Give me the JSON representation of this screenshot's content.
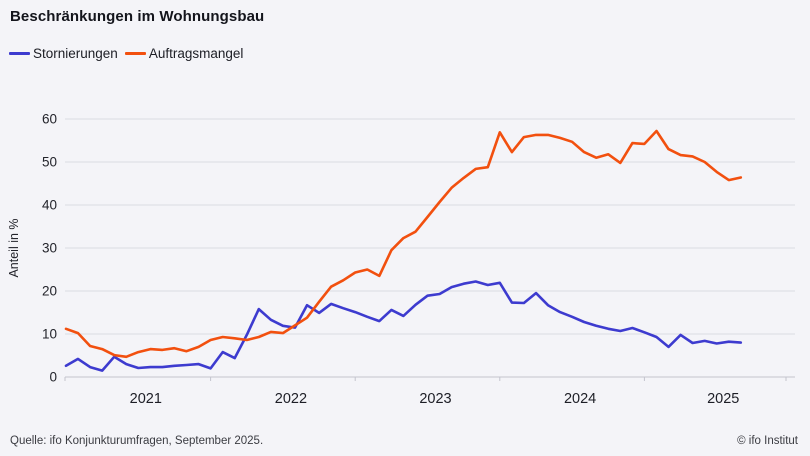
{
  "page": {
    "title": "Beschränkungen im Wohnungsbau"
  },
  "legend": [
    {
      "label": "Stornierungen",
      "color": "#3d3bcf"
    },
    {
      "label": "Auftragsmangel",
      "color": "#f2500f"
    }
  ],
  "footer": {
    "source": "Quelle: ifo Konjunkturumfragen, September 2025.",
    "copyright": "© ifo Institut"
  },
  "colors": {
    "background": "#f4f4f8",
    "gridline": "#dadbe2",
    "axis": "#c3c4cd",
    "axis_text": "#23242b",
    "year_text": "#1d1e26"
  },
  "chart_data": {
    "type": "line",
    "title": "Beschränkungen im Wohnungsbau",
    "ylabel": "Anteil in %",
    "ylim": [
      0,
      60
    ],
    "yticks": [
      0,
      10,
      20,
      30,
      40,
      50,
      60
    ],
    "grid": "horizontal",
    "legend_position": "top-left",
    "x_year_labels": [
      "2021",
      "2022",
      "2023",
      "2024",
      "2025"
    ],
    "x": [
      "2021-01",
      "2021-02",
      "2021-03",
      "2021-04",
      "2021-05",
      "2021-06",
      "2021-07",
      "2021-08",
      "2021-09",
      "2021-10",
      "2021-11",
      "2021-12",
      "2022-01",
      "2022-02",
      "2022-03",
      "2022-04",
      "2022-05",
      "2022-06",
      "2022-07",
      "2022-08",
      "2022-09",
      "2022-10",
      "2022-11",
      "2022-12",
      "2023-01",
      "2023-02",
      "2023-03",
      "2023-04",
      "2023-05",
      "2023-06",
      "2023-07",
      "2023-08",
      "2023-09",
      "2023-10",
      "2023-11",
      "2023-12",
      "2024-01",
      "2024-02",
      "2024-03",
      "2024-04",
      "2024-05",
      "2024-06",
      "2024-07",
      "2024-08",
      "2024-09",
      "2024-10",
      "2024-11",
      "2024-12",
      "2025-01",
      "2025-02",
      "2025-03",
      "2025-04",
      "2025-05",
      "2025-06",
      "2025-07",
      "2025-08",
      "2025-09"
    ],
    "series": [
      {
        "name": "Stornierungen",
        "color": "#3d3bcf",
        "values": [
          2.6,
          4.2,
          2.3,
          1.5,
          4.7,
          3.0,
          2.1,
          2.3,
          2.3,
          2.6,
          2.8,
          3.0,
          2.0,
          5.8,
          4.4,
          9.8,
          15.8,
          13.3,
          11.9,
          11.5,
          16.7,
          14.9,
          17.0,
          16.0,
          15.1,
          14.0,
          13.0,
          15.6,
          14.2,
          16.8,
          18.9,
          19.3,
          20.9,
          21.7,
          22.2,
          21.4,
          21.9,
          17.3,
          17.2,
          19.5,
          16.7,
          15.1,
          14.0,
          12.8,
          11.9,
          11.2,
          10.7,
          11.4,
          10.4,
          9.3,
          7.0,
          9.8,
          7.9,
          8.4,
          7.8,
          8.2,
          8.0
        ]
      },
      {
        "name": "Auftragsmangel",
        "color": "#f2500f",
        "values": [
          11.2,
          10.2,
          7.2,
          6.5,
          5.1,
          4.7,
          5.8,
          6.5,
          6.3,
          6.7,
          6.0,
          7.0,
          8.6,
          9.3,
          9.0,
          8.6,
          9.3,
          10.5,
          10.2,
          12.0,
          13.8,
          17.5,
          21.0,
          22.5,
          24.3,
          25.0,
          23.5,
          29.5,
          32.3,
          33.8,
          37.2,
          40.7,
          44.0,
          46.3,
          48.4,
          48.8,
          56.9,
          52.3,
          55.8,
          56.3,
          56.3,
          55.6,
          54.7,
          52.3,
          51.0,
          51.8,
          49.8,
          54.4,
          54.2,
          57.2,
          53.0,
          51.6,
          51.3,
          50.0,
          47.7,
          45.8,
          46.4
        ]
      }
    ]
  }
}
